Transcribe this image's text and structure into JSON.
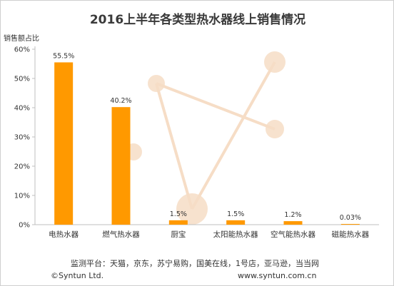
{
  "title": "2016上半年各类型热水器线上销售情况",
  "footer": {
    "sources": "监测平台：天猫，京东，苏宁易购，国美在线，1号店，亚马逊，当当网",
    "copyright": "©Syntun Ltd.",
    "website": "www.syntun.com.cn"
  },
  "colors": {
    "bar": "#FF9900",
    "watermark": "#F6DDC6",
    "grid": "#d9d9d9"
  },
  "chart_data": {
    "type": "bar",
    "title": "2016上半年各类型热水器线上销售情况",
    "ylabel": "销售额占比",
    "xlabel": "",
    "categories": [
      "电热水器",
      "燃气热水器",
      "厨宝",
      "太阳能热水器",
      "空气能热水器",
      "磁能热水器"
    ],
    "values": [
      55.5,
      40.2,
      1.5,
      1.5,
      1.2,
      0.03
    ],
    "data_labels": [
      "55.5%",
      "40.2%",
      "1.5%",
      "1.5%",
      "1.2%",
      "0.03%"
    ],
    "yticks": [
      "0%",
      "10%",
      "20%",
      "30%",
      "40%",
      "50%",
      "60%"
    ],
    "ylim": [
      0,
      60
    ],
    "grid": false,
    "legend": "none"
  }
}
